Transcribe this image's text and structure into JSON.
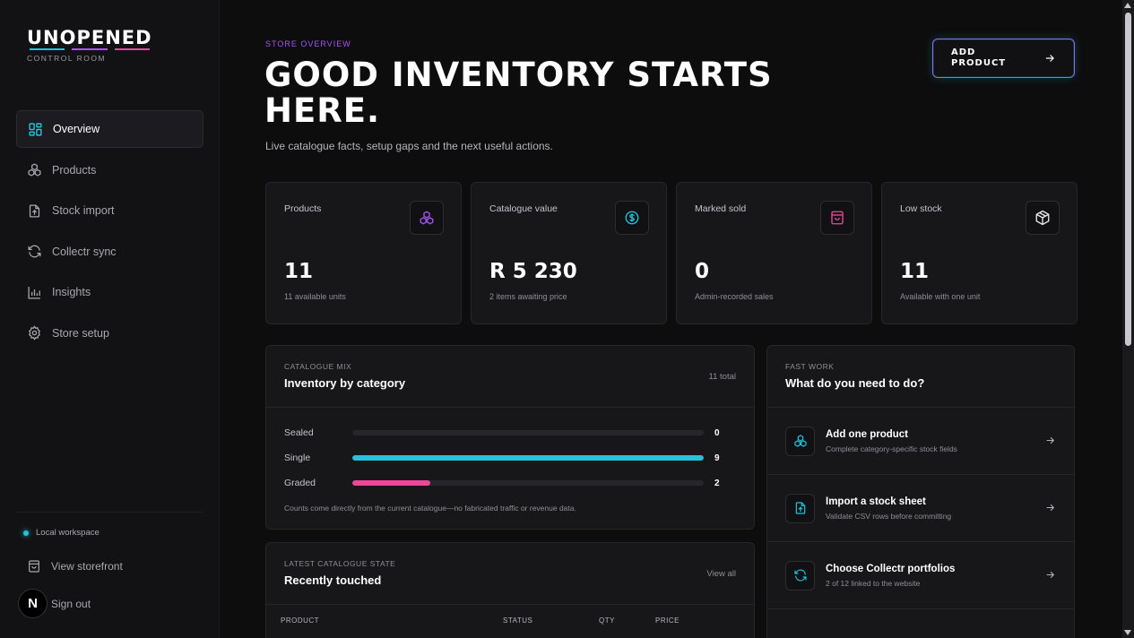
{
  "sidebar": {
    "logo": "UNOPENED",
    "logo_sub": "CONTROL ROOM",
    "logo_stripe_colors": [
      "#22c3dd",
      "#a855f7",
      "#ec4899"
    ],
    "nav": [
      {
        "label": "Overview",
        "icon": "grid-icon"
      },
      {
        "label": "Products",
        "icon": "boxes-icon"
      },
      {
        "label": "Stock import",
        "icon": "file-upload-icon"
      },
      {
        "label": "Collectr sync",
        "icon": "refresh-icon"
      },
      {
        "label": "Insights",
        "icon": "bar-chart-icon"
      },
      {
        "label": "Store setup",
        "icon": "gear-icon"
      }
    ],
    "workspace": "Local workspace",
    "view_storefront": "View storefront",
    "avatar_initial": "N",
    "sign_out": "Sign out"
  },
  "header": {
    "eyebrow": "STORE OVERVIEW",
    "title": "GOOD INVENTORY STARTS HERE.",
    "subtitle": "Live catalogue facts, setup gaps and the next useful actions.",
    "add_button": "ADD PRODUCT"
  },
  "stats": [
    {
      "label": "Products",
      "value": "11",
      "sub": "11 available units",
      "icon": "boxes-icon",
      "color": "#a855f7"
    },
    {
      "label": "Catalogue value",
      "value": "R 5 230",
      "sub": "2 items awaiting price",
      "icon": "dollar-circle-icon",
      "color": "#22c3dd"
    },
    {
      "label": "Marked sold",
      "value": "0",
      "sub": "Admin-recorded sales",
      "icon": "shopping-bag-icon",
      "color": "#ec4899"
    },
    {
      "label": "Low stock",
      "value": "11",
      "sub": "Available with one unit",
      "icon": "package-icon",
      "color": "#e8e8ea"
    }
  ],
  "catalogue_mix": {
    "eyebrow": "CATALOGUE MIX",
    "title": "Inventory by category",
    "total": "11 total",
    "rows": [
      {
        "label": "Sealed",
        "count": "0",
        "fraction": 0,
        "color": "#22c3dd"
      },
      {
        "label": "Single",
        "count": "9",
        "fraction": 1,
        "color": "#22c3dd"
      },
      {
        "label": "Graded",
        "count": "2",
        "fraction": 0.222,
        "color": "#ec4899"
      }
    ],
    "note": "Counts come directly from the current catalogue—no fabricated traffic or revenue data."
  },
  "recent": {
    "eyebrow": "LATEST CATALOGUE STATE",
    "title": "Recently touched",
    "view_all": "View all",
    "columns": [
      "PRODUCT",
      "STATUS",
      "QTY",
      "PRICE"
    ]
  },
  "fast_work": {
    "eyebrow": "FAST WORK",
    "title": "What do you need to do?",
    "actions": [
      {
        "title": "Add one product",
        "sub": "Complete category-specific stock fields",
        "icon": "boxes-icon"
      },
      {
        "title": "Import a stock sheet",
        "sub": "Validate CSV rows before committing",
        "icon": "file-upload-icon"
      },
      {
        "title": "Choose Collectr portfolios",
        "sub": "2 of 12 linked to the website",
        "icon": "refresh-icon"
      }
    ]
  }
}
